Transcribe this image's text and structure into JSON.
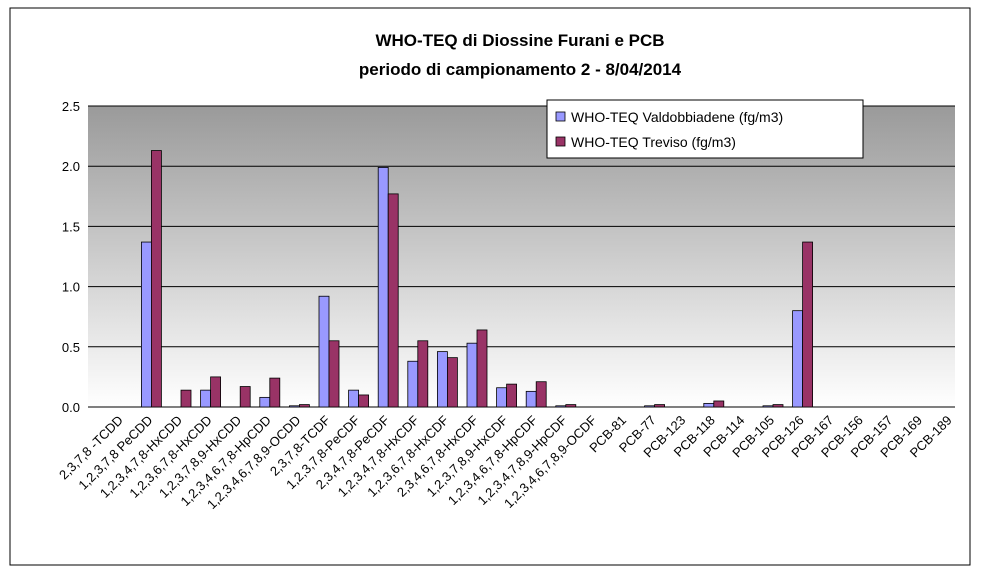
{
  "chart_data": {
    "type": "bar",
    "title": "WHO-TEQ di Diossine Furani e PCB",
    "subtitle": "periodo di campionamento 2 - 8/04/2014",
    "categories": [
      "2,3,7,8 -TCDD",
      "1,2,3,7,8 PeCDD",
      "1,2,3,4,7,8-HxCDD",
      "1,2,3,6,7,8-HxCDD",
      "1,2,3,7,8,9-HxCDD",
      "1,2,3,4,6,7,8-HpCDD",
      "1,2,3,4,6,7,8,9-OCDD",
      "2,3,7,8-TCDF",
      "1,2,3,7,8-PeCDF",
      "2,3,4,7,8-PeCDF",
      "1,2,3,4,7,8-HxCDF",
      "1,2,3,6,7,8-HxCDF",
      "2,3,4,6,7,8-HxCDF",
      "1,2,3,7,8,9-HxCDF",
      "1,2,3,4,6,7,8-HpCDF",
      "1,2,3,4,7,8,9-HpCDF",
      "1,2,3,4,6,7,8,9-OCDF",
      "PCB-81",
      "PCB-77",
      "PCB-123",
      "PCB-118",
      "PCB-114",
      "PCB-105",
      "PCB-126",
      "PCB-167",
      "PCB-156",
      "PCB-157",
      "PCB-169",
      "PCB-189"
    ],
    "series": [
      {
        "name": "WHO-TEQ Valdobbiadene (fg/m3)",
        "color": "#9999ff",
        "values": [
          0,
          1.37,
          0,
          0.14,
          0,
          0.08,
          0.01,
          0.92,
          0.14,
          1.99,
          0.38,
          0.46,
          0.53,
          0.16,
          0.13,
          0.01,
          0,
          0,
          0.01,
          0,
          0.03,
          0,
          0.01,
          0.8,
          0,
          0,
          0,
          0,
          0
        ]
      },
      {
        "name": "WHO-TEQ Treviso (fg/m3)",
        "color": "#993366",
        "values": [
          0,
          2.13,
          0.14,
          0.25,
          0.17,
          0.24,
          0.02,
          0.55,
          0.1,
          1.77,
          0.55,
          0.41,
          0.64,
          0.19,
          0.21,
          0.02,
          0,
          0,
          0.02,
          0,
          0.05,
          0,
          0.02,
          1.37,
          0,
          0,
          0,
          0,
          0
        ]
      }
    ],
    "ylim": [
      0,
      2.5
    ],
    "yticks": [
      {
        "value": 0,
        "label": "0.0"
      },
      0.5,
      {
        "value": 1,
        "label": "1.0"
      },
      1.5,
      {
        "value": 2,
        "label": "2.0"
      },
      2.5
    ],
    "grid": true,
    "legend": "top-right"
  }
}
